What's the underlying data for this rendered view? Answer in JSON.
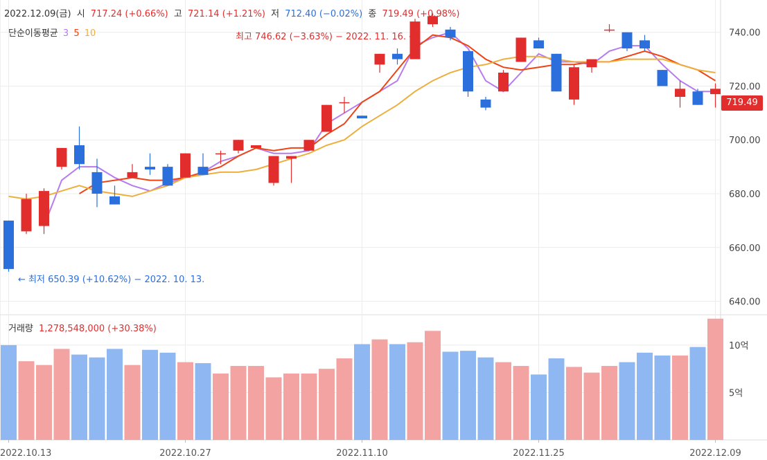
{
  "ohlc_header": {
    "date": "2022.12.09(금)",
    "open_label": "시",
    "open_value": "717.24 (+0.66%)",
    "high_label": "고",
    "high_value": "721.14 (+1.21%)",
    "low_label": "저",
    "low_value": "712.40 (−0.02%)",
    "close_label": "종",
    "close_value": "719.49 (+0.98%)"
  },
  "ma_legend": {
    "label": "단순이동평균",
    "p1": "3",
    "p2": "5",
    "p3": "10"
  },
  "volume_legend": {
    "label": "거래량",
    "value": "1,278,548,000 (+30.38%)"
  },
  "annotations": {
    "high": "최고 746.62 (−3.63%) − 2022. 11. 16. →",
    "low": "← 최저 650.39 (+10.62%) − 2022. 10. 13."
  },
  "last_price_tag": "719.49",
  "colors": {
    "up": "#e22d2d",
    "down": "#2a6fdb",
    "vol_up": "#f4a3a3",
    "vol_down": "#8fb8f2",
    "ma3": "#b57bef",
    "ma5": "#ee4313",
    "ma10": "#eeae3b",
    "grid": "#ececec"
  },
  "chart_data": {
    "type": "candlestick",
    "price_axis": {
      "range": [
        635,
        752
      ],
      "ticks": [
        640,
        660,
        680,
        700,
        720,
        740
      ],
      "tick_labels": [
        "640.00",
        "660.00",
        "680.00",
        "700.00",
        "720.00",
        "740.00"
      ]
    },
    "volume_axis": {
      "range": [
        0,
        1320000000
      ],
      "ticks": [
        500000000,
        1000000000
      ],
      "tick_labels": [
        "5억",
        "10억"
      ]
    },
    "x_tick_labels": [
      {
        "index": 0,
        "label": "2022.10.13"
      },
      {
        "index": 10,
        "label": "2022.10.27"
      },
      {
        "index": 20,
        "label": "2022.11.10"
      },
      {
        "index": 30,
        "label": "2022.11.25"
      },
      {
        "index": 40,
        "label": "2022.12.09"
      }
    ],
    "candles": [
      {
        "open": 670,
        "high": 670,
        "low": 651,
        "close": 652
      },
      {
        "open": 666,
        "high": 680,
        "low": 665,
        "close": 678
      },
      {
        "open": 668,
        "high": 682,
        "low": 665,
        "close": 681
      },
      {
        "open": 690,
        "high": 697,
        "low": 689,
        "close": 697
      },
      {
        "open": 698,
        "high": 705,
        "low": 689,
        "close": 691
      },
      {
        "open": 688,
        "high": 693,
        "low": 675,
        "close": 680
      },
      {
        "open": 679,
        "high": 683,
        "low": 676,
        "close": 676
      },
      {
        "open": 686,
        "high": 691,
        "low": 686,
        "close": 688
      },
      {
        "open": 690,
        "high": 695,
        "low": 687,
        "close": 689
      },
      {
        "open": 690,
        "high": 691,
        "low": 683,
        "close": 683
      },
      {
        "open": 686,
        "high": 695,
        "low": 686,
        "close": 695
      },
      {
        "open": 690,
        "high": 695,
        "low": 687,
        "close": 687
      },
      {
        "open": 695,
        "high": 696,
        "low": 691,
        "close": 695
      },
      {
        "open": 696,
        "high": 700,
        "low": 695,
        "close": 700
      },
      {
        "open": 697,
        "high": 698,
        "low": 697,
        "close": 698
      },
      {
        "open": 684,
        "high": 694,
        "low": 683,
        "close": 694
      },
      {
        "open": 693,
        "high": 694,
        "low": 684,
        "close": 694
      },
      {
        "open": 696,
        "high": 700,
        "low": 696,
        "close": 700
      },
      {
        "open": 703,
        "high": 713,
        "low": 703,
        "close": 713
      },
      {
        "open": 714,
        "high": 716,
        "low": 710,
        "close": 714
      },
      {
        "open": 709,
        "high": 709,
        "low": 708,
        "close": 708
      },
      {
        "open": 728,
        "high": 732,
        "low": 725,
        "close": 732
      },
      {
        "open": 732,
        "high": 734,
        "low": 728,
        "close": 730
      },
      {
        "open": 730,
        "high": 745,
        "low": 730,
        "close": 744
      },
      {
        "open": 743,
        "high": 747,
        "low": 742,
        "close": 746
      },
      {
        "open": 741,
        "high": 742,
        "low": 737,
        "close": 738
      },
      {
        "open": 733,
        "high": 733,
        "low": 716,
        "close": 718
      },
      {
        "open": 715,
        "high": 716,
        "low": 711,
        "close": 712
      },
      {
        "open": 718,
        "high": 726,
        "low": 718,
        "close": 725
      },
      {
        "open": 729,
        "high": 738,
        "low": 729,
        "close": 738
      },
      {
        "open": 737,
        "high": 738,
        "low": 734,
        "close": 734
      },
      {
        "open": 732,
        "high": 732,
        "low": 718,
        "close": 718
      },
      {
        "open": 715,
        "high": 728,
        "low": 713,
        "close": 727
      },
      {
        "open": 727,
        "high": 730,
        "low": 725,
        "close": 730
      },
      {
        "open": 741,
        "high": 743,
        "low": 740,
        "close": 741
      },
      {
        "open": 740,
        "high": 740,
        "low": 733,
        "close": 734
      },
      {
        "open": 737,
        "high": 739,
        "low": 733,
        "close": 734
      },
      {
        "open": 726,
        "high": 726,
        "low": 720,
        "close": 720
      },
      {
        "open": 716,
        "high": 722,
        "low": 712,
        "close": 719
      },
      {
        "open": 718,
        "high": 719,
        "low": 713,
        "close": 713
      },
      {
        "open": 717,
        "high": 721,
        "low": 712,
        "close": 719
      }
    ],
    "volumes": [
      1000000000,
      830000000,
      790000000,
      960000000,
      900000000,
      870000000,
      960000000,
      790000000,
      950000000,
      920000000,
      820000000,
      810000000,
      700000000,
      780000000,
      780000000,
      660000000,
      700000000,
      700000000,
      750000000,
      860000000,
      1010000000,
      1060000000,
      1010000000,
      1030000000,
      1150000000,
      930000000,
      940000000,
      870000000,
      820000000,
      780000000,
      690000000,
      860000000,
      770000000,
      710000000,
      780000000,
      820000000,
      920000000,
      890000000,
      890000000,
      980000000,
      1278548000
    ],
    "moving_averages": [
      {
        "name": "3",
        "values": [
          null,
          null,
          668,
          685,
          690,
          690,
          686,
          683,
          681,
          684,
          686,
          688,
          692,
          694,
          697,
          695,
          695,
          696,
          706,
          710,
          714,
          718,
          722,
          735,
          738,
          740,
          734,
          722,
          718,
          725,
          732,
          729,
          729,
          728,
          733,
          735,
          735,
          728,
          722,
          718,
          718
        ]
      },
      {
        "name": "5",
        "values": [
          null,
          null,
          null,
          null,
          680,
          684,
          685,
          686,
          685,
          685,
          686,
          688,
          690,
          694,
          697,
          696,
          697,
          697,
          702,
          706,
          714,
          718,
          726,
          734,
          739,
          738,
          735,
          730,
          727,
          726,
          727,
          728,
          728,
          729,
          729,
          731,
          733,
          731,
          728,
          726,
          722
        ]
      },
      {
        "name": "10",
        "values": [
          679,
          678,
          679,
          681,
          683,
          681,
          680,
          679,
          681,
          683,
          686,
          687,
          688,
          688,
          689,
          691,
          693,
          695,
          698,
          700,
          705,
          709,
          713,
          718,
          722,
          725,
          727,
          728,
          730,
          731,
          731,
          730,
          729,
          729,
          729,
          730,
          730,
          730,
          728,
          726,
          725
        ]
      }
    ]
  }
}
